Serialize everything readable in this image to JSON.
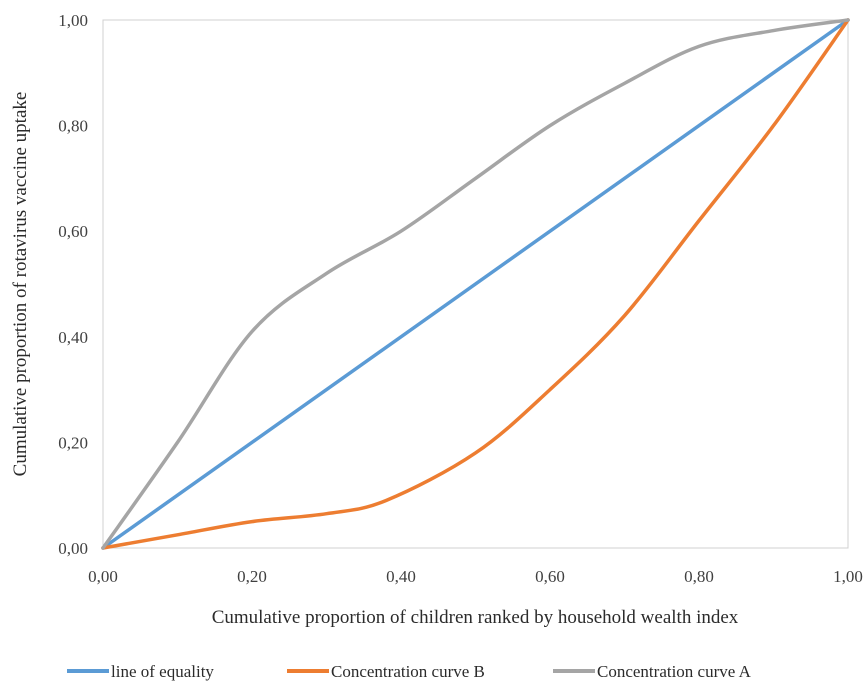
{
  "chart_data": {
    "type": "line",
    "title": "",
    "xlabel": "Cumulative proportion of children ranked by household wealth index",
    "ylabel": "Cumulative proportion of rotavirus vaccine uptake",
    "xlim": [
      0,
      1
    ],
    "ylim": [
      0,
      1
    ],
    "x_ticks": [
      "0,00",
      "0,20",
      "0,40",
      "0,60",
      "0,80",
      "1,00"
    ],
    "y_ticks": [
      "0,00",
      "0,20",
      "0,40",
      "0,60",
      "0,80",
      "1,00"
    ],
    "grid": false,
    "legend_position": "bottom",
    "series": [
      {
        "name": "line of equality",
        "color": "#5B9BD5",
        "points": [
          [
            0,
            0
          ],
          [
            1,
            1
          ]
        ]
      },
      {
        "name": "Concentration curve B",
        "color": "#ED7D31",
        "points": [
          [
            0,
            0
          ],
          [
            0.1,
            0.025
          ],
          [
            0.2,
            0.05
          ],
          [
            0.3,
            0.065
          ],
          [
            0.38,
            0.09
          ],
          [
            0.5,
            0.18
          ],
          [
            0.6,
            0.3
          ],
          [
            0.7,
            0.44
          ],
          [
            0.8,
            0.62
          ],
          [
            0.9,
            0.8
          ],
          [
            1,
            1
          ]
        ]
      },
      {
        "name": "Concentration curve A",
        "color": "#A5A5A5",
        "points": [
          [
            0,
            0
          ],
          [
            0.1,
            0.2
          ],
          [
            0.2,
            0.41
          ],
          [
            0.3,
            0.52
          ],
          [
            0.4,
            0.6
          ],
          [
            0.5,
            0.7
          ],
          [
            0.6,
            0.8
          ],
          [
            0.7,
            0.88
          ],
          [
            0.8,
            0.95
          ],
          [
            0.9,
            0.98
          ],
          [
            1,
            1
          ]
        ]
      }
    ]
  }
}
